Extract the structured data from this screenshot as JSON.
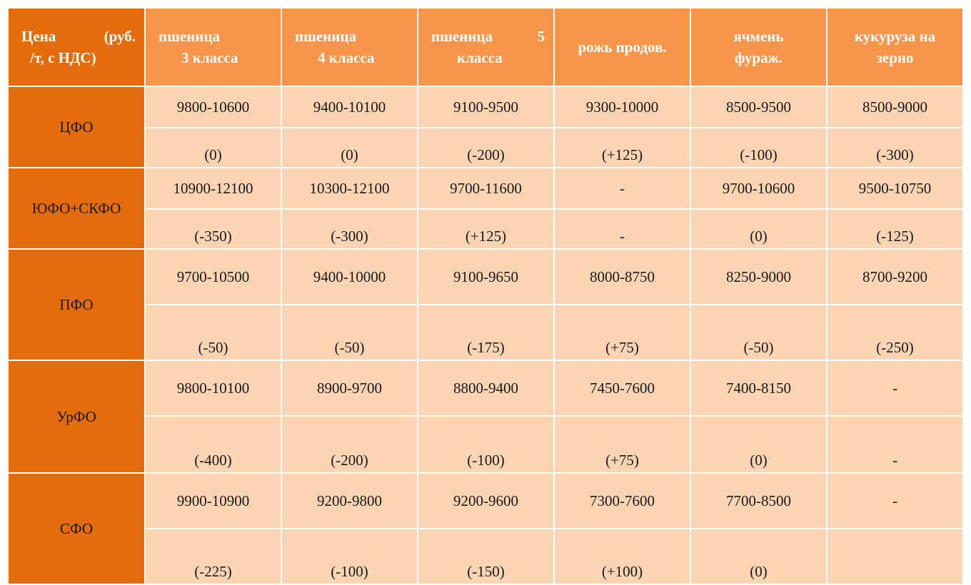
{
  "header": {
    "price": {
      "line1_a": "Цена",
      "line1_b": "(руб.",
      "line2": "/т, с НДС)"
    },
    "wheat3": {
      "line1": "пшеница",
      "line2": "3 класса"
    },
    "wheat4": {
      "line1": "пшеница",
      "line2": "4 класса"
    },
    "wheat5": {
      "line1_a": "пшеница",
      "line1_b": "5",
      "line2": "класса"
    },
    "rye": {
      "label": "рожь продов."
    },
    "barley": {
      "line1": "ячмень",
      "line2": "фураж."
    },
    "corn": {
      "line1": "кукуруза на",
      "line2": "зерно"
    }
  },
  "rows": [
    {
      "region": "ЦФО",
      "prices": [
        "9800-10600",
        "9400-10100",
        "9100-9500",
        "9300-10000",
        "8500-9500",
        "8500-9000"
      ],
      "changes": [
        "(0)",
        "(0)",
        "(-200)",
        "(+125)",
        "(-100)",
        "(-300)"
      ]
    },
    {
      "region": "ЮФО+СКФО",
      "prices": [
        "10900-12100",
        "10300-12100",
        "9700-11600",
        "-",
        "9700-10600",
        "9500-10750"
      ],
      "changes": [
        "(-350)",
        "(-300)",
        "(+125)",
        "-",
        "(0)",
        "(-125)"
      ]
    },
    {
      "region": "ПФО",
      "prices": [
        "9700-10500",
        "9400-10000",
        "9100-9650",
        "8000-8750",
        "8250-9000",
        "8700-9200"
      ],
      "changes": [
        "(-50)",
        "(-50)",
        "(-175)",
        "(+75)",
        "(-50)",
        "(-250)"
      ]
    },
    {
      "region": "УрФО",
      "prices": [
        "9800-10100",
        "8900-9700",
        "8800-9400",
        "7450-7600",
        "7400-8150",
        "-"
      ],
      "changes": [
        "(-400)",
        "(-200)",
        "(-100)",
        "(+75)",
        "(0)",
        "-"
      ]
    },
    {
      "region": "СФО",
      "prices": [
        "9900-10900",
        "9200-9800",
        "9200-9600",
        "7300-7600",
        "7700-8500",
        "-"
      ],
      "changes": [
        "(-225)",
        "(-100)",
        "(-150)",
        "(+100)",
        "(0)",
        ""
      ]
    }
  ]
}
